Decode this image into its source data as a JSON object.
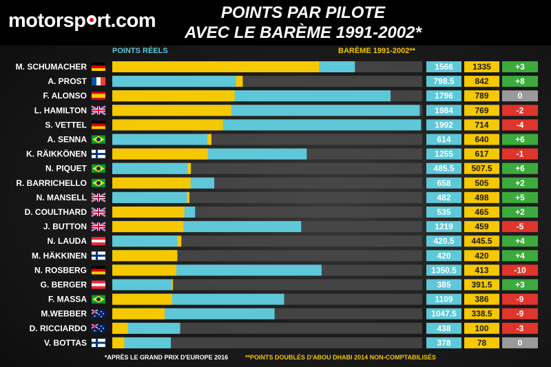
{
  "brand": {
    "name": "motorsport.com"
  },
  "title": {
    "line1": "POINTS PAR PILOTE",
    "line2": "AVEC LE BARÈME 1991-2002*"
  },
  "headers": {
    "points_reels": "POINTS RÉELS",
    "bareme": "BARÈME 1991-2002**"
  },
  "footnotes": {
    "left": "*APRÈS LE GRAND PRIX D'EUROPE 2016",
    "right": "**POINTS DOUBLÉS D'ABOU DHABI 2014 NON-COMPTABILISÉS"
  },
  "colors": {
    "reels": "#5ec8d8",
    "bareme": "#f5c800",
    "positive": "#3caa3c",
    "negative": "#e0352b",
    "zero": "#9a9a9a",
    "track": "#4a4a4a"
  },
  "chart_data": {
    "type": "bar",
    "orientation": "horizontal",
    "categories": [
      "M. SCHUMACHER",
      "A. PROST",
      "F. ALONSO",
      "L. HAMILTON",
      "S. VETTEL",
      "A. SENNA",
      "K. RÄIKKÖNEN",
      "N. PIQUET",
      "R. BARRICHELLO",
      "N. MANSELL",
      "D. COULTHARD",
      "J. BUTTON",
      "N. LAUDA",
      "M. HÄKKINEN",
      "N. ROSBERG",
      "G. BERGER",
      "F. MASSA",
      "M.WEBBER",
      "D. RICCIARDO",
      "V. BOTTAS"
    ],
    "flags": [
      "germany",
      "france",
      "spain",
      "uk",
      "germany",
      "brazil",
      "finland",
      "brazil",
      "brazil",
      "uk",
      "uk",
      "uk",
      "austria",
      "finland",
      "germany",
      "austria",
      "brazil",
      "australia",
      "australia",
      "finland"
    ],
    "series": [
      {
        "name": "POINTS RÉELS",
        "values": [
          1566,
          798.5,
          1796,
          1984,
          1992,
          614,
          1255,
          485.5,
          658,
          482,
          535,
          1219,
          420.5,
          420,
          1350.5,
          385,
          1109,
          1047.5,
          438,
          378
        ]
      },
      {
        "name": "BARÈME 1991-2002**",
        "values": [
          1335,
          842,
          789,
          769,
          714,
          640,
          617,
          507.5,
          505,
          498,
          465,
          459,
          445.5,
          420,
          413,
          391.5,
          386,
          338.5,
          100,
          78
        ]
      }
    ],
    "value_labels_reels": [
      "1566",
      "798.5",
      "1796",
      "1984",
      "1992",
      "614",
      "1255",
      "485.5",
      "658",
      "482",
      "535",
      "1219",
      "420.5",
      "420",
      "1350.5",
      "385",
      "1109",
      "1047.5",
      "438",
      "378"
    ],
    "value_labels_bareme": [
      "1335",
      "842",
      "789",
      "769",
      "714",
      "640",
      "617",
      "507.5",
      "505",
      "498",
      "465",
      "459",
      "445.5",
      "420",
      "413",
      "391.5",
      "386",
      "338.5",
      "100",
      "78"
    ],
    "differences": [
      "+3",
      "+8",
      "0",
      "-2",
      "-4",
      "+6",
      "-1",
      "+6",
      "+2",
      "+5",
      "+2",
      "-5",
      "+4",
      "+4",
      "-10",
      "+3",
      "-9",
      "-9",
      "-3",
      "0"
    ],
    "xlim": [
      0,
      2000
    ]
  }
}
